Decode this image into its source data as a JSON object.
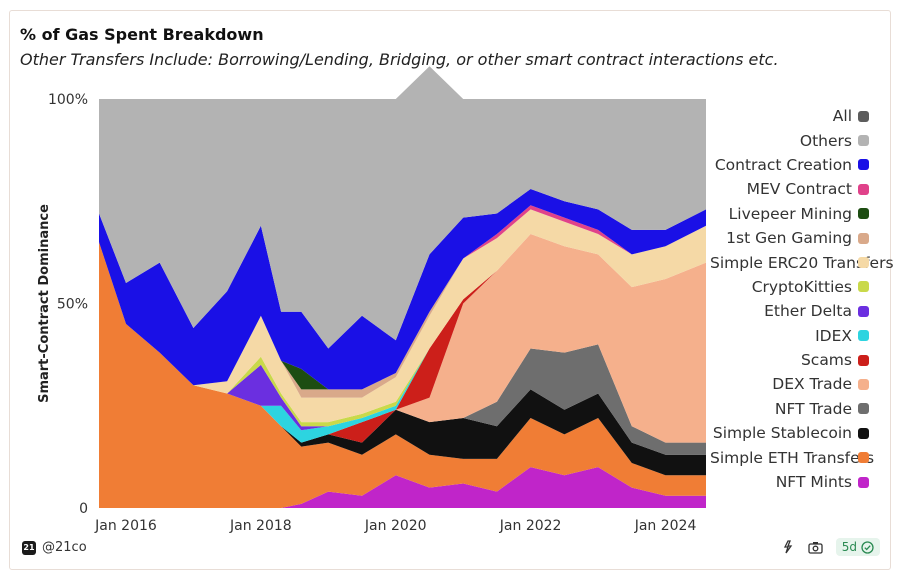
{
  "header": {
    "title": "% of Gas Spent Breakdown",
    "subtitle": "Other Transfers Include: Borrowing/Lending, Bridging, or other smart contract interactions etc."
  },
  "footer": {
    "author": "@21co",
    "logo_text": "21",
    "freshness": "5d"
  },
  "chart_data": {
    "type": "area",
    "stacked": true,
    "title": "% of Gas Spent Breakdown",
    "ylabel": "Smart-Contract Dominance",
    "xlabel": "",
    "ylim": [
      0,
      100
    ],
    "xlim": [
      2015.6,
      2024.6
    ],
    "y_ticks": [
      {
        "value": 0,
        "label": "0"
      },
      {
        "value": 50,
        "label": "50%"
      },
      {
        "value": 100,
        "label": "100%"
      }
    ],
    "x_ticks": [
      {
        "value": 2016,
        "label": "Jan 2016"
      },
      {
        "value": 2018,
        "label": "Jan 2018"
      },
      {
        "value": 2020,
        "label": "Jan 2020"
      },
      {
        "value": 2022,
        "label": "Jan 2022"
      },
      {
        "value": 2024,
        "label": "Jan 2024"
      }
    ],
    "legend": [
      {
        "name": "All",
        "color": "#5c5c5c"
      },
      {
        "name": "Others",
        "color": "#b3b3b3"
      },
      {
        "name": "Contract Creation",
        "color": "#1a10e6"
      },
      {
        "name": "MEV Contract",
        "color": "#e0428a"
      },
      {
        "name": "Livepeer Mining",
        "color": "#1d4d12"
      },
      {
        "name": "1st Gen Gaming",
        "color": "#d9a98a"
      },
      {
        "name": "Simple ERC20 Transfers",
        "color": "#f5d9a6"
      },
      {
        "name": "CryptoKitties",
        "color": "#c9d94a"
      },
      {
        "name": "Ether Delta",
        "color": "#6b2fe0"
      },
      {
        "name": "IDEX",
        "color": "#2dd4e0"
      },
      {
        "name": "Scams",
        "color": "#cc1f1a"
      },
      {
        "name": "DEX Trade",
        "color": "#f5b08c"
      },
      {
        "name": "NFT Trade",
        "color": "#6e6e6e"
      },
      {
        "name": "Simple Stablecoin",
        "color": "#111111"
      },
      {
        "name": "Simple ETH Transfers",
        "color": "#f07d35"
      },
      {
        "name": "NFT Mints",
        "color": "#c025c9"
      }
    ],
    "x": [
      2015.6,
      2016.0,
      2016.5,
      2017.0,
      2017.5,
      2018.0,
      2018.3,
      2018.6,
      2019.0,
      2019.5,
      2020.0,
      2020.5,
      2021.0,
      2021.5,
      2022.0,
      2022.5,
      2023.0,
      2023.5,
      2024.0,
      2024.6
    ],
    "series": [
      {
        "name": "NFT Mints",
        "color": "#c025c9",
        "values": [
          0,
          0,
          0,
          0,
          0,
          0,
          0,
          1,
          4,
          3,
          8,
          5,
          6,
          4,
          10,
          8,
          10,
          5,
          3,
          3
        ]
      },
      {
        "name": "Simple ETH Transfers",
        "color": "#f07d35",
        "values": [
          65,
          45,
          38,
          30,
          28,
          25,
          20,
          14,
          12,
          10,
          10,
          8,
          6,
          8,
          12,
          10,
          12,
          6,
          5,
          5
        ]
      },
      {
        "name": "Simple Stablecoin",
        "color": "#111111",
        "values": [
          0,
          0,
          0,
          0,
          0,
          0,
          0,
          1,
          2,
          3,
          6,
          8,
          10,
          8,
          7,
          6,
          6,
          5,
          5,
          5
        ]
      },
      {
        "name": "NFT Trade",
        "color": "#6e6e6e",
        "values": [
          0,
          0,
          0,
          0,
          0,
          0,
          0,
          0,
          0,
          0,
          0,
          0,
          0,
          6,
          10,
          14,
          12,
          4,
          3,
          3
        ]
      },
      {
        "name": "DEX Trade",
        "color": "#f5b08c",
        "values": [
          0,
          0,
          0,
          0,
          0,
          0,
          0,
          0,
          0,
          0,
          0,
          6,
          28,
          32,
          28,
          26,
          22,
          34,
          40,
          44
        ]
      },
      {
        "name": "Scams",
        "color": "#cc1f1a",
        "values": [
          0,
          0,
          0,
          0,
          0,
          0,
          0,
          0,
          0,
          5,
          0,
          12,
          1,
          0,
          0,
          0,
          0,
          0,
          0,
          0
        ]
      },
      {
        "name": "IDEX",
        "color": "#2dd4e0",
        "values": [
          0,
          0,
          0,
          0,
          0,
          0,
          5,
          3,
          2,
          1,
          1,
          0,
          0,
          0,
          0,
          0,
          0,
          0,
          0,
          0
        ]
      },
      {
        "name": "Ether Delta",
        "color": "#6b2fe0",
        "values": [
          0,
          0,
          0,
          0,
          0,
          10,
          2,
          1,
          0,
          0,
          0,
          0,
          0,
          0,
          0,
          0,
          0,
          0,
          0,
          0
        ]
      },
      {
        "name": "CryptoKitties",
        "color": "#c9d94a",
        "values": [
          0,
          0,
          0,
          0,
          0,
          2,
          1,
          1,
          1,
          1,
          1,
          0,
          0,
          0,
          0,
          0,
          0,
          0,
          0,
          0
        ]
      },
      {
        "name": "Simple ERC20 Transfers",
        "color": "#f5d9a6",
        "values": [
          0,
          0,
          0,
          0,
          3,
          10,
          8,
          6,
          6,
          4,
          6,
          8,
          10,
          8,
          6,
          6,
          5,
          8,
          8,
          9
        ]
      },
      {
        "name": "1st Gen Gaming",
        "color": "#d9a98a",
        "values": [
          0,
          0,
          0,
          0,
          0,
          0,
          0,
          2,
          2,
          2,
          1,
          1,
          0,
          0,
          0,
          0,
          0,
          0,
          0,
          0
        ]
      },
      {
        "name": "Livepeer Mining",
        "color": "#1d4d12",
        "values": [
          0,
          0,
          0,
          0,
          0,
          0,
          0,
          5,
          0,
          0,
          0,
          0,
          0,
          0,
          0,
          0,
          0,
          0,
          0,
          0
        ]
      },
      {
        "name": "MEV Contract",
        "color": "#e0428a",
        "values": [
          0,
          0,
          0,
          0,
          0,
          0,
          0,
          0,
          0,
          0,
          0,
          0,
          0,
          1,
          1,
          1,
          1,
          0,
          0,
          0
        ]
      },
      {
        "name": "Contract Creation",
        "color": "#1a10e6",
        "values": [
          7,
          10,
          22,
          14,
          22,
          22,
          12,
          14,
          10,
          18,
          8,
          14,
          10,
          5,
          4,
          4,
          5,
          6,
          4,
          4
        ]
      },
      {
        "name": "Others",
        "color": "#b3b3b3",
        "values": [
          28,
          45,
          40,
          56,
          47,
          31,
          52,
          52,
          61,
          53,
          59,
          46,
          29,
          28,
          22,
          25,
          27,
          32,
          32,
          27
        ]
      }
    ]
  }
}
